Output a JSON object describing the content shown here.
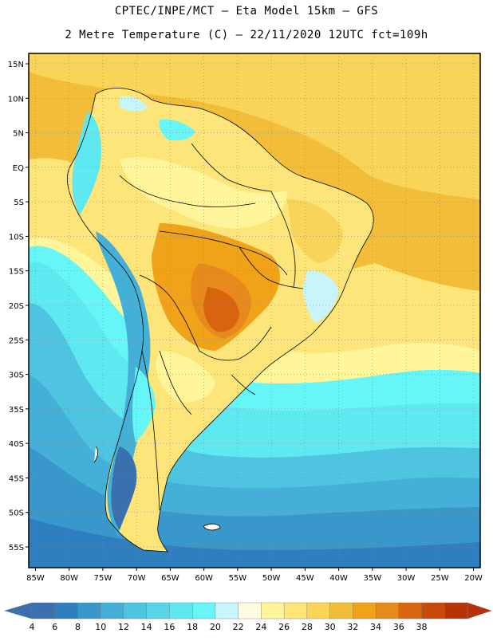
{
  "header": {
    "line1": "CPTEC/INPE/MCT  –   Eta Model 15km  –  GFS",
    "line2": "2 Metre Temperature (C) – 22/11/2020 12UTC fct=109h"
  },
  "map": {
    "lat_labels": [
      "15N",
      "10N",
      "5N",
      "EQ",
      "5S",
      "10S",
      "15S",
      "20S",
      "25S",
      "30S",
      "35S",
      "40S",
      "45S",
      "50S",
      "55S"
    ],
    "lon_labels": [
      "85W",
      "80W",
      "75W",
      "70W",
      "65W",
      "60W",
      "55W",
      "50W",
      "45W",
      "40W",
      "35W",
      "30W",
      "25W",
      "20W"
    ],
    "lat_values": [
      15,
      10,
      5,
      0,
      -5,
      -10,
      -15,
      -20,
      -25,
      -30,
      -35,
      -40,
      -45,
      -50,
      -55
    ],
    "lon_values": [
      -85,
      -80,
      -75,
      -70,
      -65,
      -60,
      -55,
      -50,
      -45,
      -40,
      -35,
      -30,
      -25,
      -20
    ],
    "extent": {
      "lon_min": -86,
      "lon_max": -19,
      "lat_min": -58,
      "lat_max": 16.5
    },
    "gridlines": "dotted"
  },
  "legend": {
    "unit": "C",
    "labels": [
      "4",
      "6",
      "8",
      "10",
      "12",
      "14",
      "16",
      "18",
      "20",
      "22",
      "24",
      "26",
      "28",
      "30",
      "32",
      "34",
      "36",
      "38"
    ],
    "colors": [
      "#3a6fb0",
      "#2f7ec0",
      "#3a97cc",
      "#44b0d8",
      "#4fc4e0",
      "#58d6e8",
      "#5ee8f0",
      "#66f6f8",
      "#c8f4fc",
      "#fffbe0",
      "#fff59a",
      "#fde57a",
      "#f8d558",
      "#f2be3a",
      "#f0a218",
      "#e78a1c",
      "#d96410",
      "#c94a08",
      "#b83208"
    ]
  }
}
